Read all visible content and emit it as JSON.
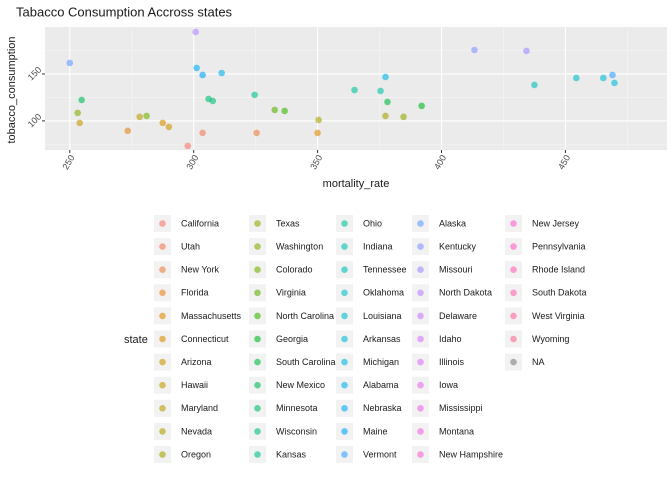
{
  "chart_data": {
    "type": "scatter",
    "title": "Tabacco Consumption Accross states",
    "x_label": "mortality_rate",
    "y_label": "tobacco_consumption",
    "legend_title": "state",
    "xlim": [
      240,
      491
    ],
    "ylim": [
      69,
      200
    ],
    "xticks": [
      250,
      300,
      350,
      400,
      450
    ],
    "yticks": [
      100,
      150
    ],
    "grid": true,
    "series": [
      {
        "name": "California",
        "color": "#F8766D",
        "x": [
          297.6
        ],
        "y": [
          73.4
        ]
      },
      {
        "name": "Utah",
        "color": "#F37B59",
        "x": [
          303.6
        ],
        "y": [
          87.2
        ]
      },
      {
        "name": "New York",
        "color": "#ED8141",
        "x": [
          325.4
        ],
        "y": [
          87.2
        ]
      },
      {
        "name": "Florida",
        "color": "#E7861B",
        "x": [
          273.4
        ],
        "y": [
          89.4
        ]
      },
      {
        "name": "Massachusetts",
        "color": "#E08B00",
        "x": [
          350
        ],
        "y": [
          87.2
        ]
      },
      {
        "name": "Connecticut",
        "color": "#D89000",
        "x": [
          287.5
        ],
        "y": [
          97.9
        ]
      },
      {
        "name": "Arizona",
        "color": "#CF9400",
        "x": [
          290
        ],
        "y": [
          93.6
        ]
      },
      {
        "name": "Hawaii",
        "color": "#C59900",
        "x": [
          254
        ],
        "y": [
          97.9
        ]
      },
      {
        "name": "Maryland",
        "color": "#BB9D00",
        "x": [
          278.2
        ],
        "y": [
          104.3
        ]
      },
      {
        "name": "Nevada",
        "color": "#AFA100",
        "x": [
          350.4
        ],
        "y": [
          101
        ]
      },
      {
        "name": "Oregon",
        "color": "#A3A500",
        "x": [
          377.4
        ],
        "y": [
          105.3
        ]
      },
      {
        "name": "Texas",
        "color": "#95A900",
        "x": [
          384.7
        ],
        "y": [
          104.3
        ]
      },
      {
        "name": "Washington",
        "color": "#85AD00",
        "x": [
          253.2
        ],
        "y": [
          108.5
        ]
      },
      {
        "name": "Colorado",
        "color": "#72B000",
        "x": [
          281
        ],
        "y": [
          105.3
        ]
      },
      {
        "name": "Virginia",
        "color": "#5BB300",
        "x": [
          332.7
        ],
        "y": [
          111.7
        ]
      },
      {
        "name": "North Carolina",
        "color": "#39B600",
        "x": [
          336.7
        ],
        "y": [
          110.6
        ]
      },
      {
        "name": "Georgia",
        "color": "#00B81F",
        "x": [
          392
        ],
        "y": [
          116
        ]
      },
      {
        "name": "South Carolina",
        "color": "#00BA42",
        "x": [
          378.2
        ],
        "y": [
          120.2
        ]
      },
      {
        "name": "New Mexico",
        "color": "#00BC59",
        "x": [
          254.8
        ],
        "y": [
          122.3
        ]
      },
      {
        "name": "Minnesota",
        "color": "#00BE6C",
        "x": [
          306
        ],
        "y": [
          123.4
        ]
      },
      {
        "name": "Wisconsin",
        "color": "#00BF7D",
        "x": [
          307.7
        ],
        "y": [
          121.3
        ]
      },
      {
        "name": "Kansas",
        "color": "#00C08D",
        "x": [
          324.6
        ],
        "y": [
          127.7
        ]
      },
      {
        "name": "Ohio",
        "color": "#00C19C",
        "x": [
          364.9
        ],
        "y": [
          132.9
        ]
      },
      {
        "name": "Indiana",
        "color": "#00C1AA",
        "x": [
          375.4
        ],
        "y": [
          131.9
        ]
      },
      {
        "name": "Tennessee",
        "color": "#00C0B7",
        "x": [
          437.5
        ],
        "y": [
          138.3
        ]
      },
      {
        "name": "Oklahoma",
        "color": "#00BFC4",
        "x": [
          454.4
        ],
        "y": [
          145.7
        ]
      },
      {
        "name": "Louisiana",
        "color": "#00BDD0",
        "x": [
          465.3
        ],
        "y": [
          145.7
        ]
      },
      {
        "name": "Arkansas",
        "color": "#00BADB",
        "x": [
          469.8
        ],
        "y": [
          140.4
        ]
      },
      {
        "name": "Michigan",
        "color": "#00B7E5",
        "x": [
          377.4
        ],
        "y": [
          146.8
        ]
      },
      {
        "name": "Alabama",
        "color": "#00B2EE",
        "x": [
          311.3
        ],
        "y": [
          151
        ]
      },
      {
        "name": "Nebraska",
        "color": "#00ADF6",
        "x": [
          301.2
        ],
        "y": [
          156.4
        ]
      },
      {
        "name": "Maine",
        "color": "#00A7FF",
        "x": [
          303.6
        ],
        "y": [
          148.9
        ]
      },
      {
        "name": "Vermont",
        "color": "#35A2FF",
        "x": [
          469
        ],
        "y": [
          148.9
        ]
      },
      {
        "name": "Alaska",
        "color": "#619CFF",
        "x": [
          250
        ],
        "y": [
          161.7
        ]
      },
      {
        "name": "Kentucky",
        "color": "#8594FF",
        "x": [
          413.3
        ],
        "y": [
          175.5
        ]
      },
      {
        "name": "Missouri",
        "color": "#A08CFF",
        "x": [
          434.3
        ],
        "y": [
          174.5
        ]
      },
      {
        "name": "North Dakota",
        "color": "#B983FF",
        "x": [
          300.8
        ],
        "y": [
          194.7
        ]
      },
      {
        "name": "Delaware",
        "color": "#C77CFF",
        "x": [],
        "y": []
      },
      {
        "name": "Idaho",
        "color": "#D376FF",
        "x": [],
        "y": []
      },
      {
        "name": "Illinois",
        "color": "#DD71FA",
        "x": [],
        "y": []
      },
      {
        "name": "Iowa",
        "color": "#E76BF3",
        "x": [],
        "y": []
      },
      {
        "name": "Mississippi",
        "color": "#EF67EB",
        "x": [],
        "y": []
      },
      {
        "name": "Montana",
        "color": "#F564E3",
        "x": [],
        "y": []
      },
      {
        "name": "New Hampshire",
        "color": "#FA62D9",
        "x": [],
        "y": []
      },
      {
        "name": "New Jersey",
        "color": "#FD61CF",
        "x": [],
        "y": []
      },
      {
        "name": "Pennsylvania",
        "color": "#FF61C4",
        "x": [],
        "y": []
      },
      {
        "name": "Rhode Island",
        "color": "#FF62B9",
        "x": [],
        "y": []
      },
      {
        "name": "South Dakota",
        "color": "#FF64AD",
        "x": [],
        "y": []
      },
      {
        "name": "West Virginia",
        "color": "#FF67A1",
        "x": [],
        "y": []
      },
      {
        "name": "Wyoming",
        "color": "#FC6B93",
        "x": [],
        "y": []
      },
      {
        "name": "NA",
        "color": "#7F7F7F",
        "x": [],
        "y": []
      }
    ]
  }
}
